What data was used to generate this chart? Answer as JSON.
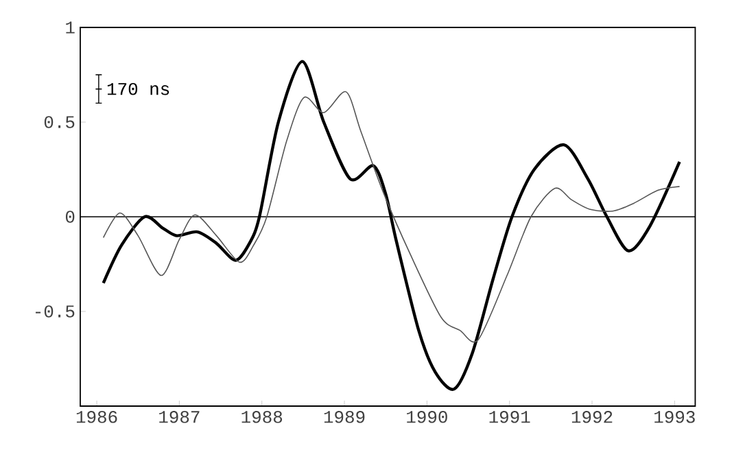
{
  "chart_data": {
    "type": "line",
    "xlim": [
      1985.8,
      1993.25
    ],
    "ylim": [
      -1,
      1
    ],
    "xticks": [
      1986,
      1987,
      1988,
      1989,
      1990,
      1991,
      1992,
      1993
    ],
    "yticks": [
      -0.5,
      0,
      0.5,
      1
    ],
    "annotations": [
      "170 ns"
    ],
    "ref_lines": [
      {
        "axis": "y",
        "value": 0,
        "color": "#000000"
      }
    ],
    "series": [
      {
        "color": "#000000",
        "x": [
          1986.08,
          1986.3,
          1986.58,
          1986.8,
          1986.97,
          1987.22,
          1987.45,
          1987.68,
          1987.85,
          1987.97,
          1988.2,
          1988.49,
          1988.75,
          1989.07,
          1989.35,
          1989.5,
          1989.63,
          1989.9,
          1990.1,
          1990.33,
          1990.55,
          1990.8,
          1991.03,
          1991.3,
          1991.66,
          1991.95,
          1992.18,
          1992.44,
          1992.7,
          1993.06
        ],
        "values": [
          -0.35,
          -0.15,
          0.0,
          -0.06,
          -0.1,
          -0.08,
          -0.14,
          -0.23,
          -0.14,
          0.0,
          0.5,
          0.82,
          0.5,
          0.2,
          0.27,
          0.12,
          -0.13,
          -0.6,
          -0.82,
          -0.91,
          -0.72,
          -0.33,
          0.0,
          0.25,
          0.38,
          0.2,
          0.0,
          -0.18,
          -0.05,
          0.29
        ]
      },
      {
        "color": "#555555",
        "x": [
          1986.08,
          1986.28,
          1986.5,
          1986.78,
          1987.0,
          1987.19,
          1987.45,
          1987.73,
          1987.9,
          1988.06,
          1988.3,
          1988.51,
          1988.75,
          1989.02,
          1989.2,
          1989.47,
          1989.8,
          1990.17,
          1990.4,
          1990.62,
          1990.97,
          1991.26,
          1991.55,
          1991.75,
          1991.97,
          1992.25,
          1992.5,
          1992.8,
          1993.06
        ],
        "values": [
          -0.11,
          0.02,
          -0.1,
          -0.31,
          -0.12,
          0.01,
          -0.1,
          -0.24,
          -0.15,
          0.0,
          0.4,
          0.63,
          0.55,
          0.66,
          0.45,
          0.13,
          -0.2,
          -0.53,
          -0.6,
          -0.65,
          -0.31,
          0.0,
          0.15,
          0.09,
          0.04,
          0.03,
          0.07,
          0.14,
          0.16
        ]
      }
    ]
  }
}
